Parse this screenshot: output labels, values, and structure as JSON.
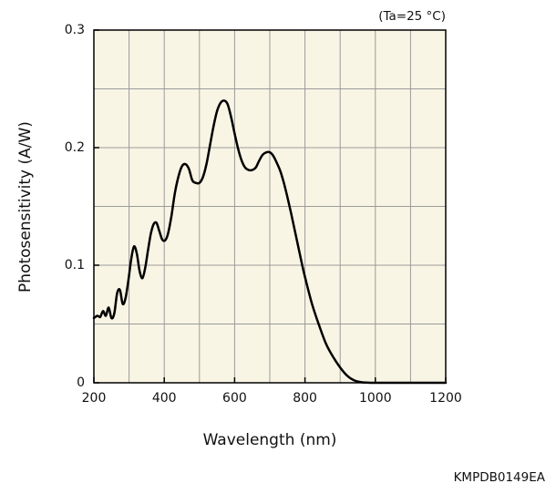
{
  "chart_data": {
    "type": "line",
    "title": "",
    "condition_label": "(Ta=25 °C)",
    "xlabel": "Wavelength (nm)",
    "ylabel": "Photosensitivity (A/W)",
    "xlim": [
      200,
      1200
    ],
    "ylim": [
      0,
      0.3
    ],
    "x_ticks": [
      200,
      400,
      600,
      800,
      1000,
      1200
    ],
    "x_tick_labels": [
      "200",
      "400",
      "600",
      "800",
      "1000",
      "1200"
    ],
    "y_ticks": [
      0,
      0.1,
      0.2,
      0.3
    ],
    "y_tick_labels": [
      "0",
      "0.1",
      "0.2",
      "0.3"
    ],
    "grid": true,
    "background_color": "#f8f5e4",
    "line_color": "#000000",
    "series": [
      {
        "x": [
          200,
          210,
          218,
          226,
          234,
          242,
          250,
          258,
          266,
          274,
          282,
          290,
          298,
          306,
          314,
          322,
          330,
          338,
          346,
          354,
          362,
          370,
          378,
          386,
          394,
          402,
          410,
          420,
          430,
          440,
          450,
          460,
          470,
          480,
          490,
          500,
          510,
          520,
          530,
          540,
          550,
          560,
          570,
          580,
          590,
          600,
          610,
          620,
          630,
          640,
          650,
          660,
          670,
          680,
          690,
          700,
          710,
          720,
          730,
          740,
          750,
          760,
          770,
          780,
          790,
          800,
          820,
          840,
          860,
          880,
          900,
          920,
          940,
          960,
          980,
          1000,
          1020,
          1040,
          1060,
          1080,
          1100,
          1120,
          1140,
          1160,
          1180,
          1200
        ],
        "y": [
          0.055,
          0.057,
          0.056,
          0.061,
          0.057,
          0.064,
          0.055,
          0.059,
          0.076,
          0.079,
          0.067,
          0.072,
          0.087,
          0.105,
          0.116,
          0.11,
          0.095,
          0.089,
          0.098,
          0.113,
          0.127,
          0.135,
          0.136,
          0.129,
          0.122,
          0.121,
          0.126,
          0.141,
          0.161,
          0.175,
          0.184,
          0.186,
          0.182,
          0.172,
          0.17,
          0.17,
          0.175,
          0.186,
          0.202,
          0.218,
          0.231,
          0.238,
          0.24,
          0.237,
          0.226,
          0.212,
          0.199,
          0.189,
          0.183,
          0.181,
          0.181,
          0.183,
          0.189,
          0.194,
          0.196,
          0.196,
          0.193,
          0.187,
          0.18,
          0.17,
          0.158,
          0.145,
          0.131,
          0.117,
          0.103,
          0.09,
          0.067,
          0.049,
          0.033,
          0.022,
          0.013,
          0.006,
          0.002,
          0.0005,
          0.0001,
          0.0,
          0.0,
          0.0,
          0.0,
          0.0,
          0.0,
          0.0,
          0.0,
          0.0,
          0.0,
          0.0
        ]
      }
    ]
  },
  "footer": {
    "code": "KMPDB0149EA"
  }
}
